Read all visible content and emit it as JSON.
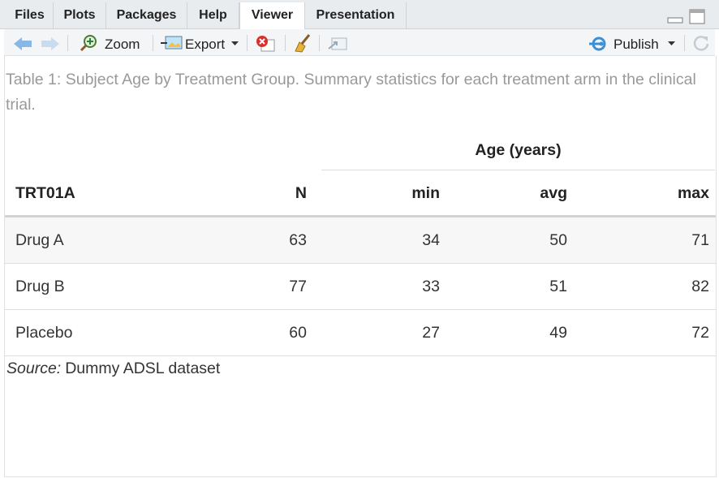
{
  "tabs": [
    "Files",
    "Plots",
    "Packages",
    "Help",
    "Viewer",
    "Presentation"
  ],
  "toolbar": {
    "zoom": "Zoom",
    "export": "Export",
    "publish": "Publish"
  },
  "table": {
    "caption": "Table 1: Subject Age by Treatment Group. Summary statistics for each treatment arm in the clinical trial.",
    "spanner": "Age (years)",
    "columns": [
      "TRT01A",
      "N",
      "min",
      "avg",
      "max"
    ],
    "rows": [
      [
        "Drug A",
        63,
        34,
        50,
        71
      ],
      [
        "Drug B",
        77,
        33,
        51,
        82
      ],
      [
        "Placebo",
        60,
        27,
        49,
        72
      ]
    ],
    "source_note": {
      "label": "Source:",
      "text": "Dummy ADSL dataset"
    }
  }
}
